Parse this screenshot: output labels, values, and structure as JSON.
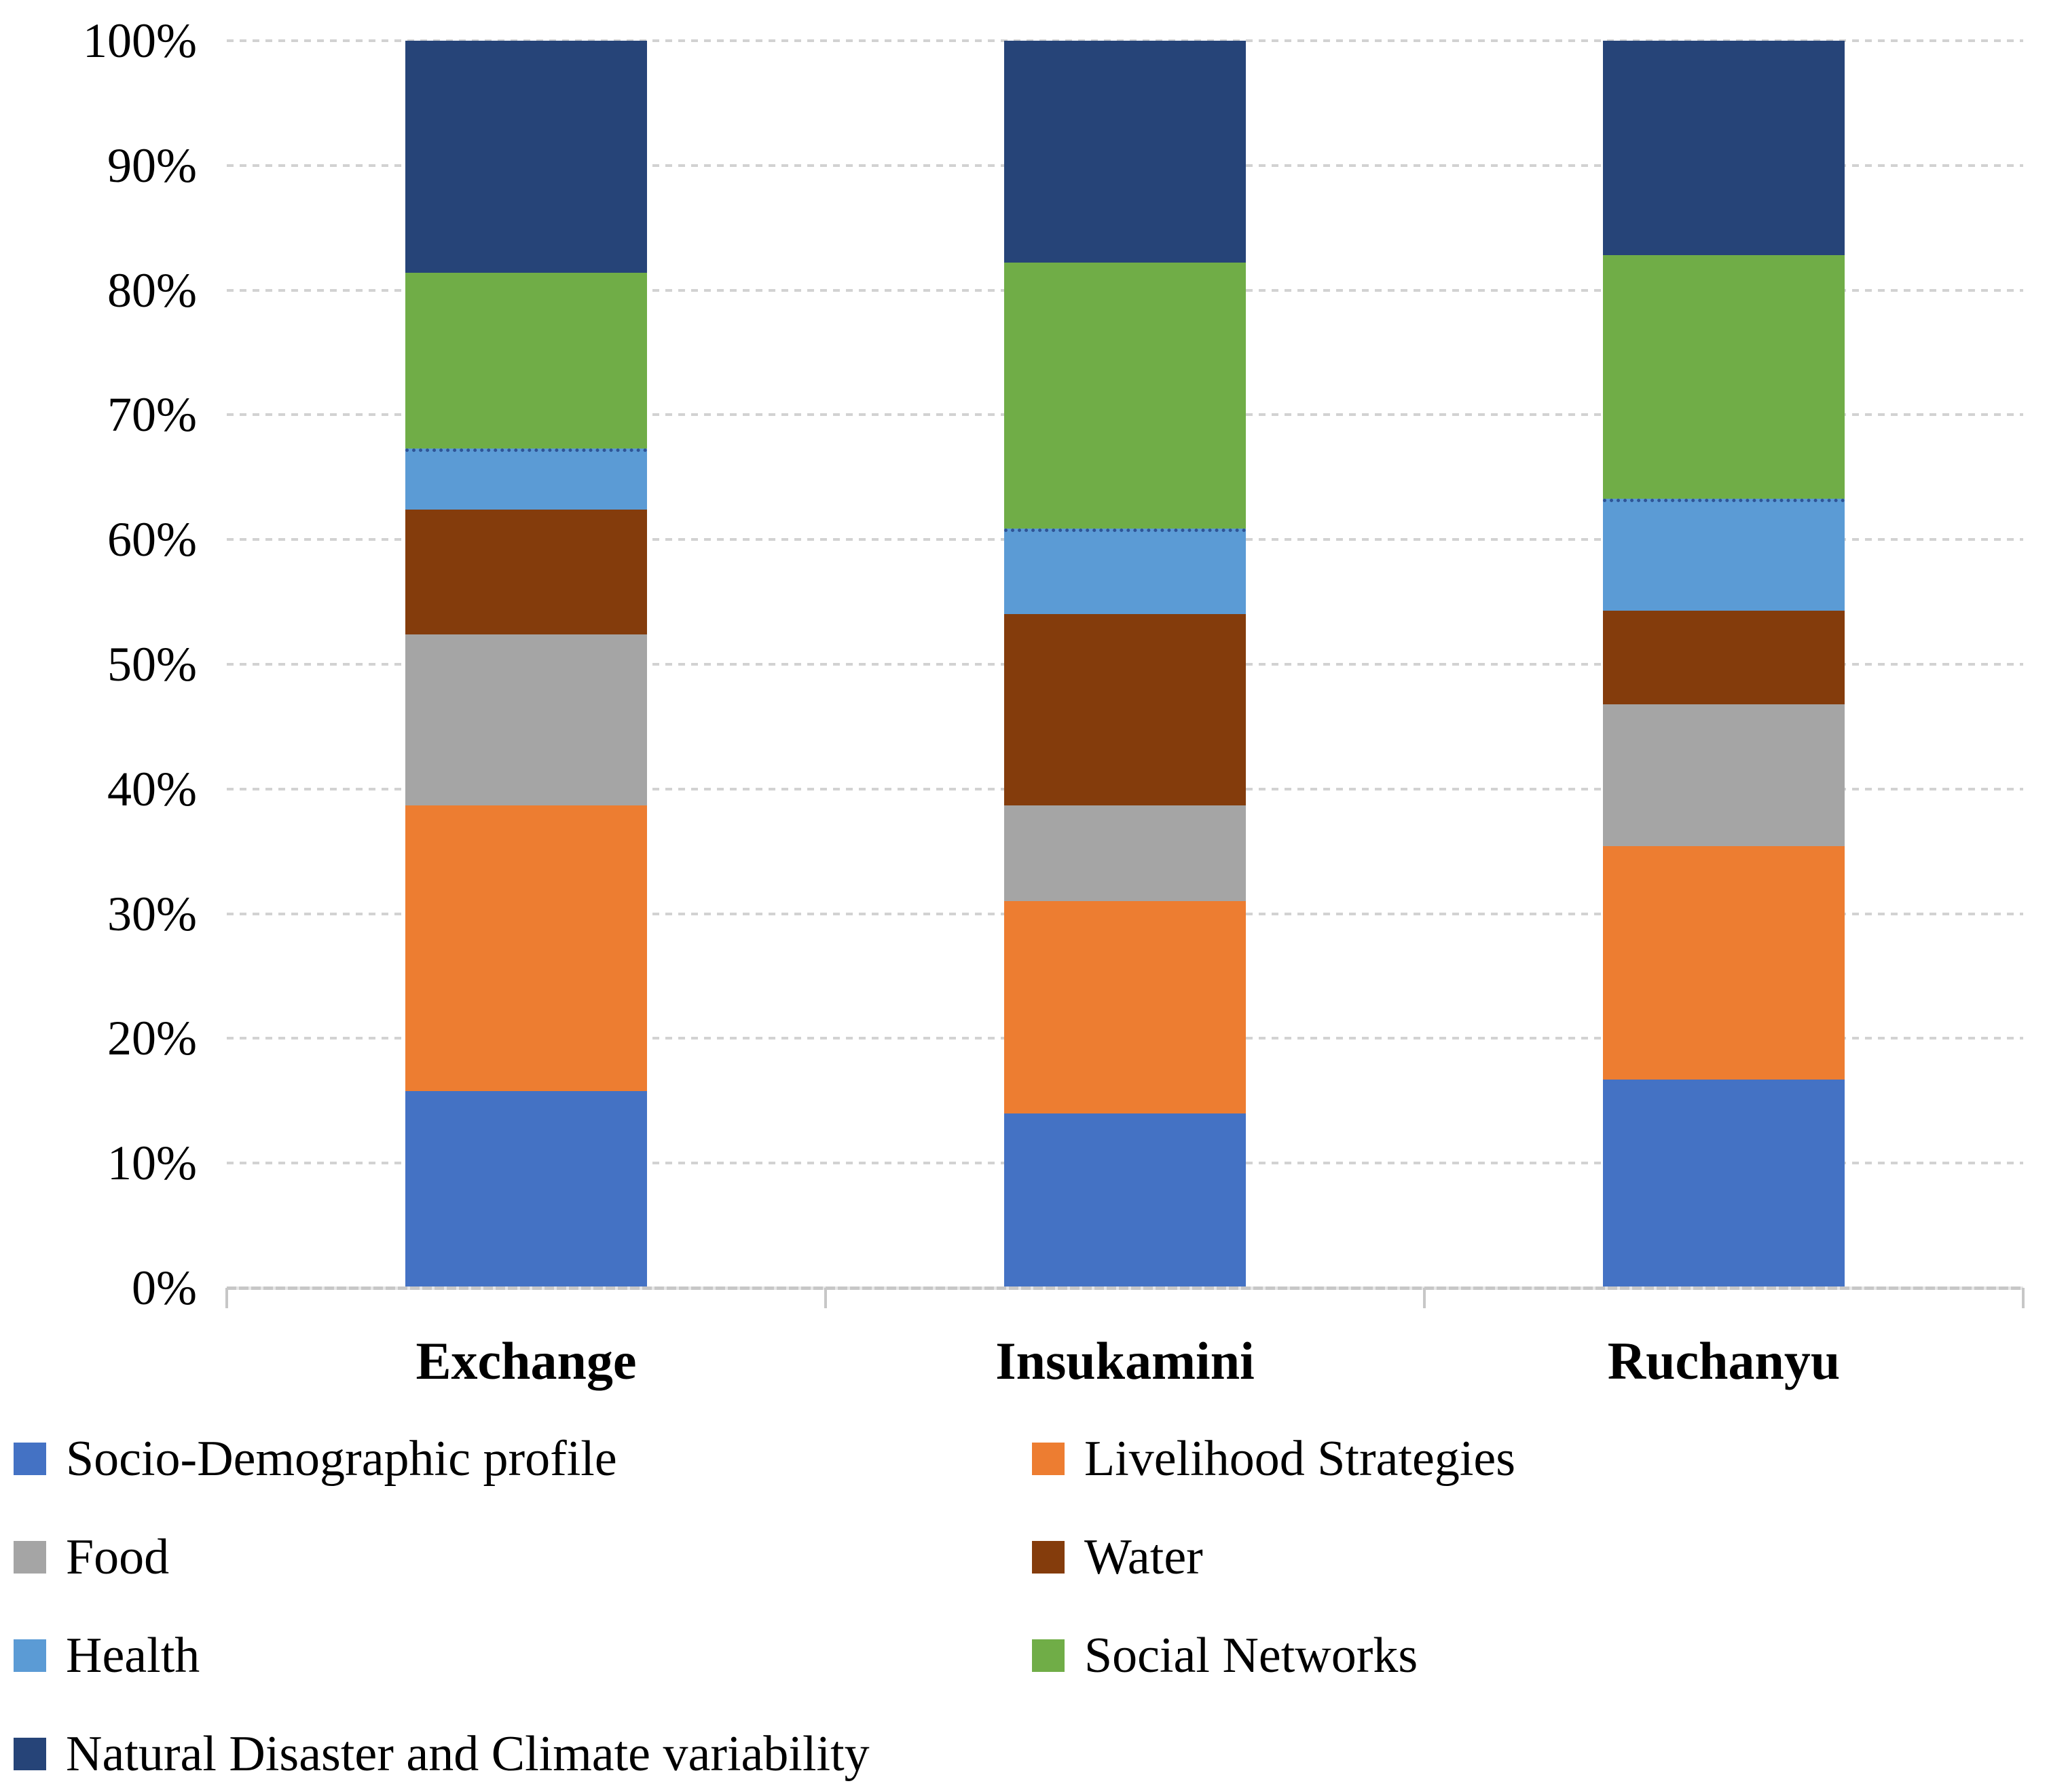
{
  "chart_data": {
    "type": "bar",
    "variant": "stacked-100-percent",
    "title": "",
    "xlabel": "",
    "ylabel": "",
    "categories": [
      "Exchange",
      "Insukamini",
      "Ruchanyu"
    ],
    "series": [
      {
        "name": "Socio-Demographic profile",
        "color": "#4472C4",
        "values": [
          15.8,
          14.0,
          16.7
        ]
      },
      {
        "name": "Livelihood Strategies",
        "color": "#ED7D31",
        "values": [
          22.9,
          17.0,
          18.7
        ]
      },
      {
        "name": "Food",
        "color": "#A5A5A5",
        "values": [
          13.7,
          7.7,
          11.4
        ]
      },
      {
        "name": "Water",
        "color": "#843C0C",
        "values": [
          10.0,
          15.3,
          7.5
        ]
      },
      {
        "name": "Health",
        "color": "#5B9BD5",
        "values": [
          4.9,
          6.9,
          9.0
        ]
      },
      {
        "name": "Social Networks",
        "color": "#70AD47",
        "values": [
          14.1,
          21.3,
          19.5
        ]
      },
      {
        "name": "Natural Disaster and Climate variability",
        "color": "#264478",
        "values": [
          18.6,
          17.8,
          17.2
        ]
      }
    ],
    "y_axis": {
      "ticks": [
        "100%",
        "90%",
        "80%",
        "70%",
        "60%",
        "50%",
        "40%",
        "30%",
        "20%",
        "10%",
        "0%"
      ],
      "ylim": [
        0,
        100
      ]
    },
    "grid": "horizontal-dotted",
    "grid_color": "#D2D2D2",
    "axis_color": "#C7C7C7",
    "legend_position": "bottom-two-columns"
  }
}
